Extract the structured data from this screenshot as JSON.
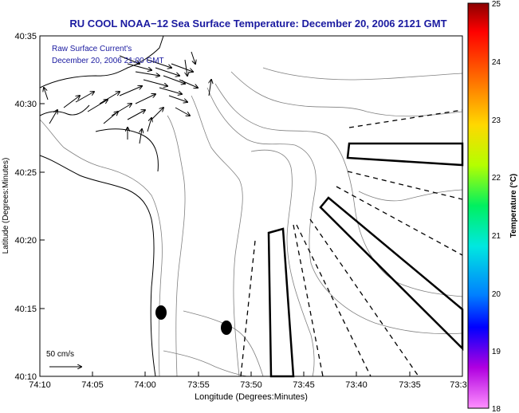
{
  "title": "RU COOL  NOAA−12  Sea Surface Temperature:  December 20, 2006 2121 GMT",
  "map_legend": {
    "line1": "Raw Surface Current's",
    "line2": "December 20, 2006 21:00 GMT"
  },
  "scale_label": "50 cm/s",
  "x_axis": {
    "label": "Longitude (Degrees:Minutes)",
    "ticks": [
      "74:10",
      "74:05",
      "74:00",
      "73:55",
      "73:50",
      "73:45",
      "73:40",
      "73:35",
      "73:3"
    ]
  },
  "y_axis": {
    "label": "Latitude (Degrees:Minutes)",
    "ticks": [
      "40:35",
      "40:30",
      "40:25",
      "40:20",
      "40:15",
      "40:10"
    ]
  },
  "colorbar": {
    "label": "Temperature (°C)",
    "ticks": [
      "25",
      "24",
      "23",
      "22",
      "21",
      "20",
      "19",
      "18"
    ],
    "min": 18,
    "max": 25
  },
  "colors": {
    "title": "#1a1aa0",
    "frame": "#000000",
    "contour": "#808080"
  }
}
